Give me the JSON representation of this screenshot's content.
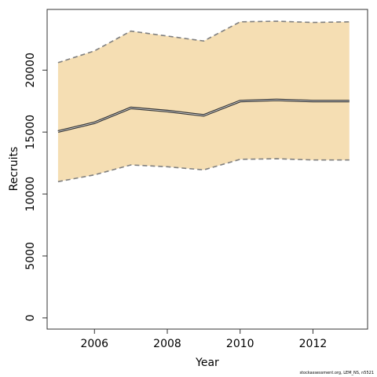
{
  "chart_data": {
    "type": "area",
    "title": "",
    "xlabel": "Year",
    "ylabel": "Recruits",
    "x": [
      2005,
      2006,
      2007,
      2008,
      2009,
      2010,
      2011,
      2012,
      2013
    ],
    "series": [
      {
        "role": "estimate",
        "values": [
          15050,
          15750,
          16950,
          16700,
          16350,
          17500,
          17600,
          17500,
          17500
        ]
      },
      {
        "role": "upper",
        "values": [
          20600,
          21550,
          23150,
          22750,
          22350,
          23900,
          23950,
          23850,
          23900
        ]
      },
      {
        "role": "lower",
        "values": [
          11000,
          11550,
          12350,
          12200,
          11950,
          12800,
          12850,
          12750,
          12750
        ]
      }
    ],
    "xlim": [
      2004.7,
      2013.5
    ],
    "ylim": [
      -900,
      24900
    ],
    "xticks": [
      2006,
      2008,
      2010,
      2012
    ],
    "yticks": [
      0,
      5000,
      10000,
      15000,
      20000
    ],
    "grid": false,
    "colors": {
      "band": "#F5DEB3",
      "line": "#333333",
      "bound": "#7f7f7f"
    }
  },
  "footer": "stockassessment.org, LEM_NS, n5521"
}
